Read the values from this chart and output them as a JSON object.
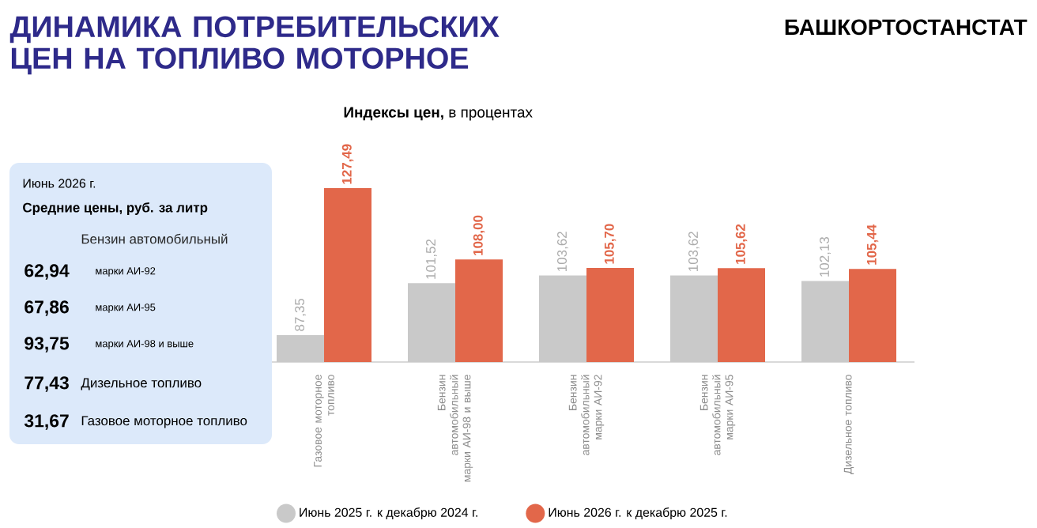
{
  "chart_data": [
    {
      "type": "bar",
      "title": "ДИНАМИКА ПОТРЕБИТЕЛЬСКИХ ЦЕН НА ТОПЛИВО МОТОРНОЕ",
      "subtitle": "**Индексы цен,** в процентах",
      "annotations": [
        "БАШКОРТОСТАНСТАТ"
      ],
      "categories": [
        "Газовое моторное топливо",
        "Бензин автомобильный марки АИ-98 и выше",
        "Бензин автомобильный марки АИ-92",
        "Бензин автомобильный марки АИ-95",
        "Дизельное топливо"
      ],
      "series": [
        {
          "name": "Июнь 2025 г. к декабрю 2024 г.",
          "color": "#c9c9c9",
          "values": [
            87.35,
            101.52,
            103.62,
            103.62,
            102.13
          ],
          "value_labels": [
            "87,35",
            "101,52",
            "103,62",
            "103,62",
            "102,13"
          ]
        },
        {
          "name": "Июнь 2026 г. к декабрю 2025 г.",
          "color": "#e2674a",
          "values": [
            127.49,
            108.0,
            105.7,
            105.62,
            105.44
          ],
          "value_labels": [
            "127,49",
            "108,00",
            "105,70",
            "105,62",
            "105,44"
          ]
        }
      ],
      "ylim": [
        80,
        127.49
      ],
      "tick_labels": "x",
      "legend": "bottom"
    },
    {
      "type": "other",
      "title": "Июнь 2026 г.",
      "subtitle": "Средние цены, руб. за литр",
      "annotations": [
        "Бензин автомобильный"
      ],
      "categories": [
        "марки АИ-92",
        "марки АИ-95",
        "марки АИ-98 и выше",
        "Дизельное топливо",
        "Газовое моторное топливо"
      ],
      "value_labels": [
        "62,94",
        "67,86",
        "93,75",
        "77,43",
        "31,67"
      ]
    }
  ]
}
